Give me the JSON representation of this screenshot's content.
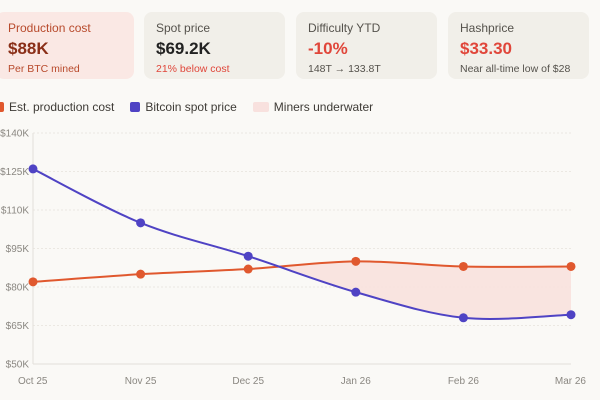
{
  "cards": [
    {
      "label": "Production cost",
      "value": "$88K",
      "sub": "Per BTC mined"
    },
    {
      "label": "Spot price",
      "value": "$69.2K",
      "sub": "21% below cost"
    },
    {
      "label": "Difficulty YTD",
      "value": "-10%",
      "sub": "148T → 133.8T"
    },
    {
      "label": "Hashprice",
      "value": "$33.30",
      "sub": "Near all-time low of $28"
    }
  ],
  "colors": {
    "cost": "#e0582e",
    "spot": "#4f43c4",
    "underwater": "#f8e1de"
  },
  "chart_data": {
    "type": "line",
    "categories": [
      "Oct 25",
      "Nov 25",
      "Dec 25",
      "Jan 26",
      "Feb 26",
      "Mar 26"
    ],
    "series": [
      {
        "name": "Est. production cost",
        "values": [
          82,
          85,
          87,
          90,
          88,
          88
        ]
      },
      {
        "name": "Bitcoin spot price",
        "values": [
          126,
          105,
          92,
          78,
          68,
          69.2
        ]
      }
    ],
    "area_label": "Miners underwater",
    "yticks": [
      140,
      125,
      110,
      95,
      80,
      65,
      50
    ],
    "ytick_labels": [
      "$140K",
      "$125K",
      "$110K",
      "$95K",
      "$80K",
      "$65K",
      "$50K"
    ],
    "ylim": [
      50,
      140
    ],
    "grid": true,
    "legend": "top-left"
  }
}
